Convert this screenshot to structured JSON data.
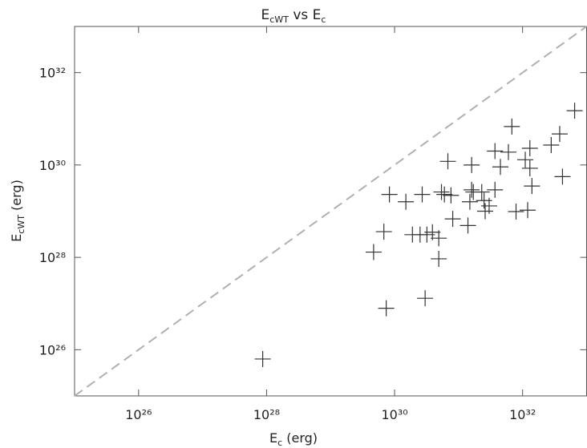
{
  "chart_data": {
    "type": "scatter",
    "title": [
      {
        "text": "E"
      },
      {
        "text": "cWT",
        "sub": true
      },
      {
        "text": " vs E"
      },
      {
        "text": "c",
        "sub": true
      }
    ],
    "xlabel": [
      {
        "text": "E"
      },
      {
        "text": "c",
        "sub": true
      },
      {
        "text": " (erg)"
      }
    ],
    "ylabel": [
      {
        "text": "E"
      },
      {
        "text": "cWT",
        "sub": true
      },
      {
        "text": " (erg)"
      }
    ],
    "log_x": true,
    "log_y": true,
    "diagonal": true,
    "color": "#333333",
    "diagonal_color": "#b0b0b0",
    "xlim": [
      1e+25,
      1e+33
    ],
    "ylim": [
      1e+25,
      1e+33
    ],
    "xticks": [
      {
        "value": 1e+26,
        "label": "10²⁶"
      },
      {
        "value": 1e+28,
        "label": "10²⁸"
      },
      {
        "value": 1e+30,
        "label": "10³⁰"
      },
      {
        "value": 1e+32,
        "label": "10³²"
      }
    ],
    "yticks": [
      {
        "value": 1e+26,
        "label": "10²⁶"
      },
      {
        "value": 1e+28,
        "label": "10²⁸"
      },
      {
        "value": 1e+30,
        "label": "10³⁰"
      },
      {
        "value": 1e+32,
        "label": "10³²"
      }
    ],
    "x": [
      8.7e+27,
      4.7e+29,
      6.8e+29,
      7.4e+29,
      8.3e+29,
      1.5e+30,
      1.9e+30,
      2.5e+30,
      2.7e+30,
      3e+30,
      3.2e+30,
      3.9e+30,
      4.9e+30,
      4.9e+30,
      5.4e+30,
      6e+30,
      6.8e+30,
      7.6e+30,
      8.1e+30,
      1.4e+31,
      1.5e+31,
      1.6e+31,
      1.6e+31,
      1.7e+31,
      2.3e+31,
      2.5e+31,
      2.6e+31,
      3e+31,
      3.7e+31,
      3.7e+31,
      4.5e+31,
      6e+31,
      6.8e+31,
      7.9e+31,
      1.1e+32,
      1.2e+32,
      1.3e+32,
      1.3e+32,
      1.4e+32,
      2.8e+32,
      3.8e+32,
      4.2e+32,
      6.5e+32
    ],
    "values": [
      6.3e+25,
      1.3e+28,
      3.6e+28,
      7.9e+26,
      2.3e+29,
      1.6e+29,
      3.1e+28,
      3.1e+28,
      2.3e+29,
      1.3e+27,
      3.1e+28,
      3.5e+28,
      2.6e+28,
      9.3e+27,
      2.6e+29,
      2.3e+29,
      1.2e+30,
      2.2e+29,
      6.8e+28,
      4.9e+28,
      1.6e+29,
      1e+30,
      2.9e+29,
      2.6e+29,
      2.6e+29,
      1.7e+29,
      1e+29,
      1.3e+29,
      2.9e+29,
      2e+30,
      9.1e+29,
      1.9e+30,
      6.8e+30,
      9.8e+28,
      1.3e+30,
      1.05e+29,
      2.3e+30,
      8.5e+29,
      3.5e+29,
      2.7e+30,
      4.7e+30,
      5.6e+29,
      1.5e+31
    ]
  }
}
